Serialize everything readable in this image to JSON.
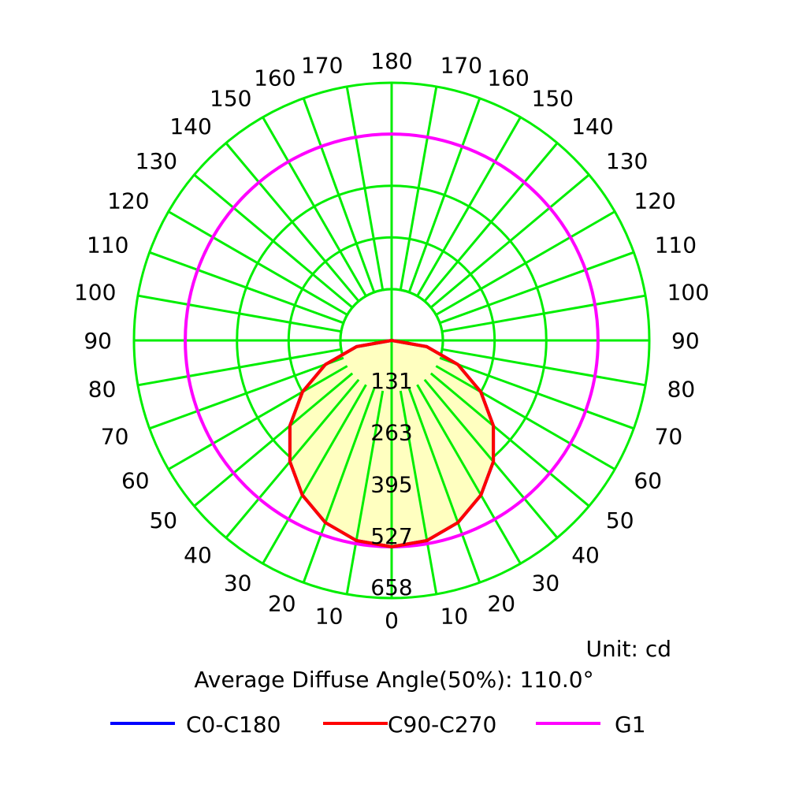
{
  "chart_data": {
    "type": "polar",
    "unit_text": "Unit: cd",
    "subtitle": "Average Diffuse Angle(50%): 110.0°",
    "angle_labels": [
      0,
      10,
      20,
      30,
      40,
      50,
      60,
      70,
      80,
      90,
      100,
      110,
      120,
      130,
      140,
      150,
      160,
      170,
      180
    ],
    "radial_ticks": [
      131,
      263,
      395,
      527,
      658
    ],
    "rmax": 658,
    "grid_color": "#00ee00",
    "fill_color": "#ffffc0",
    "series": [
      {
        "name": "C0-C180",
        "color": "#0000ff",
        "angles": [
          0,
          10,
          20,
          30,
          40,
          50,
          60,
          70,
          80,
          90
        ],
        "values": [
          527,
          519,
          495,
          456,
          404,
          339,
          263,
          180,
          91,
          0
        ]
      },
      {
        "name": "C90-C270",
        "color": "#ff0000",
        "angles": [
          0,
          10,
          20,
          30,
          40,
          50,
          60,
          70,
          80,
          90
        ],
        "values": [
          527,
          519,
          495,
          456,
          404,
          339,
          263,
          180,
          91,
          0
        ]
      },
      {
        "name": "G1",
        "color": "#ff00ff",
        "radius_value": 527
      }
    ]
  }
}
